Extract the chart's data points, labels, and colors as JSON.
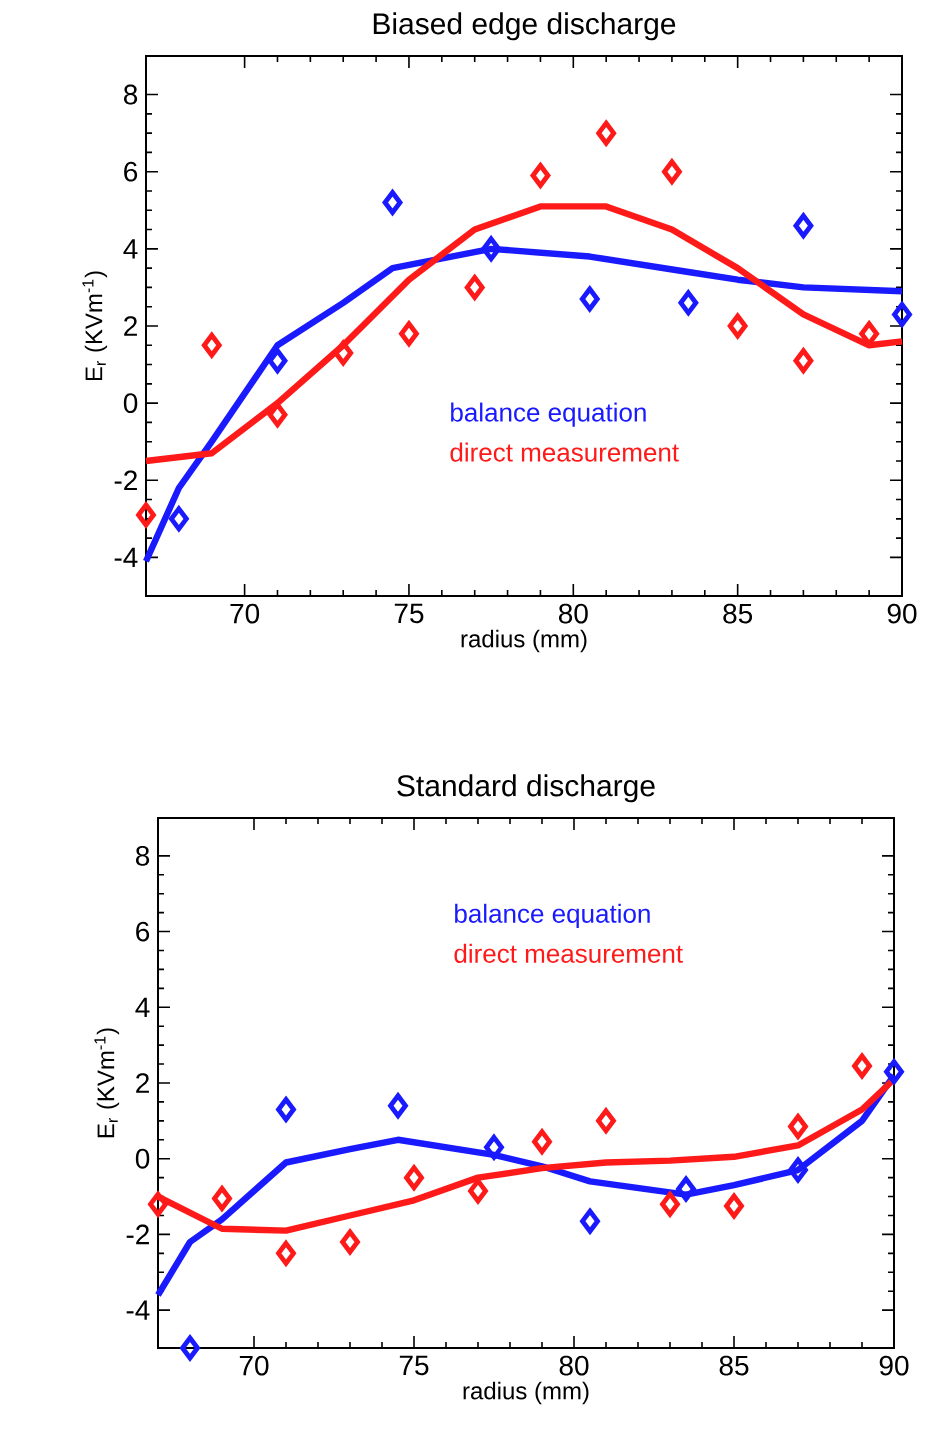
{
  "chart_data": [
    {
      "type": "line",
      "title": "Biased edge discharge",
      "xlabel": "radius (mm)",
      "ylabel": "E$_{r}$ (KVm$^{-1}$)",
      "xlim": [
        67,
        90
      ],
      "ylim": [
        -5,
        9
      ],
      "xticks": [
        70,
        75,
        80,
        85,
        90
      ],
      "yticks": [
        -4,
        -2,
        0,
        2,
        4,
        6,
        8
      ],
      "legend": "bottom right",
      "series": [
        {
          "name": "balance equation",
          "color": "#1a1aff",
          "x": [
            67,
            68,
            69,
            71,
            73,
            74.5,
            77.5,
            80.5,
            83.5,
            85,
            87,
            90
          ],
          "values": [
            -4.1,
            -2.2,
            -1.0,
            1.5,
            2.6,
            3.5,
            4.0,
            3.8,
            3.4,
            3.2,
            3.0,
            2.9
          ]
        },
        {
          "name": "direct measurement",
          "color": "#ff1a1a",
          "x": [
            67,
            69,
            71,
            73,
            75,
            77,
            79,
            81,
            83,
            85,
            87,
            89,
            90
          ],
          "values": [
            -1.5,
            -1.3,
            0.0,
            1.5,
            3.2,
            4.5,
            5.1,
            5.1,
            4.5,
            3.5,
            2.3,
            1.5,
            1.6
          ]
        },
        {
          "type": "scatter",
          "marker": "diamond",
          "color": "#1a1aff",
          "x": [
            68,
            71,
            74.5,
            77.5,
            80.5,
            83.5,
            87,
            90
          ],
          "values": [
            -3.0,
            1.1,
            5.2,
            4.0,
            2.7,
            2.6,
            4.6,
            2.3
          ]
        },
        {
          "type": "scatter",
          "marker": "diamond",
          "color": "#ff1a1a",
          "x": [
            67,
            69,
            71,
            73,
            75,
            77,
            79,
            81,
            83,
            85,
            87,
            89
          ],
          "values": [
            -2.9,
            1.5,
            -0.3,
            1.3,
            1.8,
            3.0,
            5.9,
            7.0,
            6.0,
            2.0,
            1.1,
            1.8
          ]
        }
      ]
    },
    {
      "type": "line",
      "title": "Standard discharge",
      "xlabel": "radius (mm)",
      "ylabel": "E$_{r}$ (KVm$^{-1}$)",
      "xlim": [
        67,
        90
      ],
      "ylim": [
        -5,
        9
      ],
      "xticks": [
        70,
        75,
        80,
        85,
        90
      ],
      "yticks": [
        -4,
        -2,
        0,
        2,
        4,
        6,
        8
      ],
      "legend": "top right",
      "series": [
        {
          "name": "balance equation",
          "color": "#1a1aff",
          "x": [
            67,
            68,
            69,
            71,
            73,
            74.5,
            77.5,
            79,
            80.5,
            83.5,
            85,
            87,
            89,
            90
          ],
          "values": [
            -3.6,
            -2.2,
            -1.6,
            -0.1,
            0.25,
            0.5,
            0.1,
            -0.2,
            -0.6,
            -0.95,
            -0.7,
            -0.3,
            1.0,
            2.2
          ]
        },
        {
          "name": "direct measurement",
          "color": "#ff1a1a",
          "x": [
            67,
            69,
            71,
            73,
            75,
            77,
            79,
            81,
            83,
            85,
            87,
            89,
            90
          ],
          "values": [
            -1.0,
            -1.85,
            -1.9,
            -1.5,
            -1.1,
            -0.5,
            -0.25,
            -0.1,
            -0.05,
            0.05,
            0.35,
            1.3,
            2.1
          ]
        },
        {
          "type": "scatter",
          "marker": "diamond",
          "color": "#1a1aff",
          "x": [
            68,
            71,
            74.5,
            77.5,
            80.5,
            83.5,
            87,
            90
          ],
          "values": [
            -5.0,
            1.3,
            1.4,
            0.3,
            -1.65,
            -0.8,
            -0.3,
            2.3
          ]
        },
        {
          "type": "scatter",
          "marker": "diamond",
          "color": "#ff1a1a",
          "x": [
            67,
            69,
            71,
            73,
            75,
            77,
            79,
            81,
            83,
            85,
            87,
            89
          ],
          "values": [
            -1.2,
            -1.05,
            -2.5,
            -2.2,
            -0.5,
            -0.85,
            0.45,
            1.0,
            -1.2,
            -1.25,
            0.85,
            2.45
          ]
        }
      ]
    }
  ]
}
